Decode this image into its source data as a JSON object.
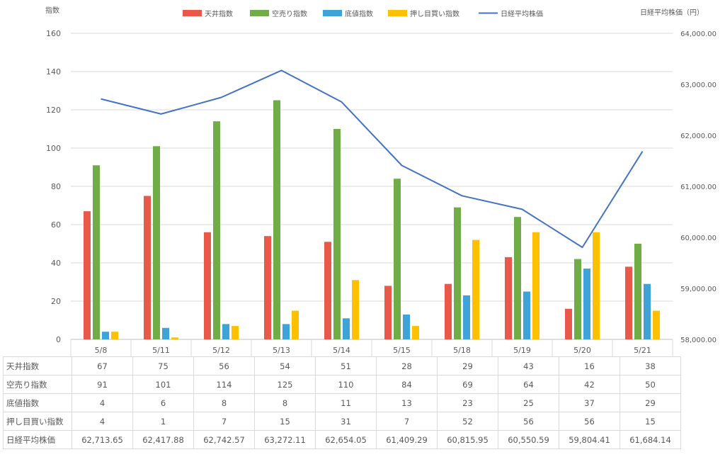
{
  "chart_data": {
    "type": "bar",
    "title": "",
    "ylabel_left": "指数",
    "ylabel_right": "日経平均株価（円）",
    "ylim_left": [
      0,
      160
    ],
    "yticks_left": [
      "0",
      "20",
      "40",
      "60",
      "80",
      "100",
      "120",
      "140",
      "160"
    ],
    "ylim_right": [
      58000,
      64000
    ],
    "yticks_right": [
      "58,000.00",
      "59,000.00",
      "60,000.00",
      "61,000.00",
      "62,000.00",
      "63,000.00",
      "64,000.00"
    ],
    "legend_position": "top",
    "grid": true,
    "categories": [
      "5/8",
      "5/11",
      "5/12",
      "5/13",
      "5/14",
      "5/15",
      "5/18",
      "5/19",
      "5/20",
      "5/21"
    ],
    "series": [
      {
        "name": "天井指数",
        "type": "bar",
        "axis": "left",
        "color": "#e8594a",
        "values": [
          67,
          75,
          56,
          54,
          51,
          28,
          29,
          43,
          16,
          38
        ]
      },
      {
        "name": "空売り指数",
        "type": "bar",
        "axis": "left",
        "color": "#70ad47",
        "values": [
          91,
          101,
          114,
          125,
          110,
          84,
          69,
          64,
          42,
          50
        ]
      },
      {
        "name": "底値指数",
        "type": "bar",
        "axis": "left",
        "color": "#3ea3d8",
        "values": [
          4,
          6,
          8,
          8,
          11,
          13,
          23,
          25,
          37,
          29
        ]
      },
      {
        "name": "押し目買い指数",
        "type": "bar",
        "axis": "left",
        "color": "#ffc000",
        "values": [
          4,
          1,
          7,
          15,
          31,
          7,
          52,
          56,
          56,
          15
        ]
      },
      {
        "name": "日経平均株価",
        "type": "line",
        "axis": "right",
        "color": "#4472c4",
        "values": [
          62713.65,
          62417.88,
          62742.57,
          63272.11,
          62654.05,
          61409.29,
          60815.95,
          60550.59,
          59804.41,
          61684.14
        ]
      }
    ]
  },
  "table": {
    "rows": [
      {
        "label": "天井指数",
        "cells": [
          "67",
          "75",
          "56",
          "54",
          "51",
          "28",
          "29",
          "43",
          "16",
          "38"
        ]
      },
      {
        "label": "空売り指数",
        "cells": [
          "91",
          "101",
          "114",
          "125",
          "110",
          "84",
          "69",
          "64",
          "42",
          "50"
        ]
      },
      {
        "label": "底値指数",
        "cells": [
          "4",
          "6",
          "8",
          "8",
          "11",
          "13",
          "23",
          "25",
          "37",
          "29"
        ]
      },
      {
        "label": "押し目買い指数",
        "cells": [
          "4",
          "1",
          "7",
          "15",
          "31",
          "7",
          "52",
          "56",
          "56",
          "15"
        ]
      },
      {
        "label": "日経平均株価",
        "cells": [
          "62,713.65",
          "62,417.88",
          "62,742.57",
          "63,272.11",
          "62,654.05",
          "61,409.29",
          "60,815.95",
          "60,550.59",
          "59,804.41",
          "61,684.14"
        ]
      }
    ]
  }
}
